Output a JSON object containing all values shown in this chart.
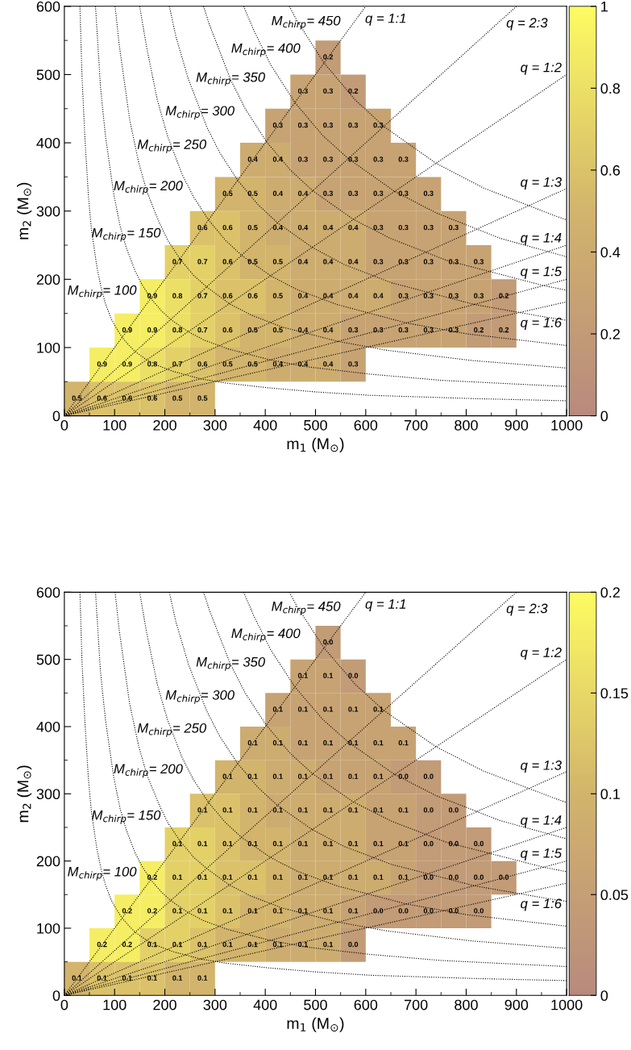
{
  "chart_data": [
    {
      "type": "heatmap",
      "xlabel": "m$_{1}$ (M$_{⊙}$)",
      "ylabel": "m$_{2}$ (M$_{⊙}$)",
      "x": [
        25,
        75,
        125,
        175,
        225,
        275,
        325,
        375,
        425,
        475,
        525,
        575,
        625,
        675,
        725,
        775,
        825,
        875,
        925,
        975
      ],
      "y": [
        525,
        475,
        425,
        375,
        325,
        275,
        225,
        175,
        125,
        75,
        25
      ],
      "cells": [
        [
          null,
          null,
          null,
          null,
          null,
          null,
          null,
          null,
          null,
          null,
          0.2,
          null,
          null,
          null,
          null,
          null,
          null,
          null,
          null,
          null
        ],
        [
          null,
          null,
          null,
          null,
          null,
          null,
          null,
          null,
          null,
          0.3,
          0.3,
          0.2,
          null,
          null,
          null,
          null,
          null,
          null,
          null,
          null
        ],
        [
          null,
          null,
          null,
          null,
          null,
          null,
          null,
          null,
          0.3,
          0.3,
          0.3,
          0.3,
          0.3,
          null,
          null,
          null,
          null,
          null,
          null,
          null
        ],
        [
          null,
          null,
          null,
          null,
          null,
          null,
          null,
          0.4,
          0.4,
          0.3,
          0.3,
          0.3,
          0.3,
          0.3,
          null,
          null,
          null,
          null,
          null,
          null
        ],
        [
          null,
          null,
          null,
          null,
          null,
          null,
          0.5,
          0.5,
          0.4,
          0.4,
          0.3,
          0.3,
          0.3,
          0.3,
          0.3,
          null,
          null,
          null,
          null,
          null
        ],
        [
          null,
          null,
          null,
          null,
          null,
          0.6,
          0.6,
          0.5,
          0.4,
          0.4,
          0.4,
          0.4,
          0.3,
          0.3,
          0.3,
          0.3,
          null,
          null,
          null,
          null
        ],
        [
          null,
          null,
          null,
          null,
          0.7,
          0.7,
          0.6,
          0.5,
          0.5,
          0.4,
          0.4,
          0.4,
          0.3,
          0.3,
          0.3,
          0.3,
          0.3,
          null,
          null,
          null
        ],
        [
          null,
          null,
          null,
          0.9,
          0.8,
          0.7,
          0.6,
          0.6,
          0.5,
          0.4,
          0.4,
          0.4,
          0.4,
          0.3,
          0.3,
          0.3,
          0.3,
          0.2,
          null,
          null
        ],
        [
          null,
          null,
          0.9,
          0.9,
          0.8,
          0.7,
          0.6,
          0.5,
          0.5,
          0.4,
          0.4,
          0.3,
          0.3,
          0.3,
          0.3,
          0.3,
          0.2,
          0.2,
          null,
          null
        ],
        [
          null,
          0.9,
          0.9,
          0.8,
          0.7,
          0.6,
          0.5,
          0.5,
          0.4,
          0.4,
          0.4,
          0.3,
          null,
          null,
          null,
          null,
          null,
          null,
          null,
          null
        ],
        [
          0.5,
          0.6,
          0.6,
          0.6,
          0.5,
          0.5,
          null,
          null,
          null,
          null,
          null,
          null,
          null,
          null,
          null,
          null,
          null,
          null,
          null,
          null
        ]
      ],
      "cell_labels": [
        [
          null,
          null,
          null,
          null,
          null,
          null,
          null,
          null,
          null,
          null,
          "0.2",
          null,
          null,
          null,
          null,
          null,
          null,
          null,
          null,
          null
        ],
        [
          null,
          null,
          null,
          null,
          null,
          null,
          null,
          null,
          null,
          "0.3",
          "0.3",
          "0.2",
          null,
          null,
          null,
          null,
          null,
          null,
          null,
          null
        ],
        [
          null,
          null,
          null,
          null,
          null,
          null,
          null,
          null,
          "0.3",
          "0.3",
          "0.3",
          "0.3",
          "0.3",
          null,
          null,
          null,
          null,
          null,
          null,
          null
        ],
        [
          null,
          null,
          null,
          null,
          null,
          null,
          null,
          "0.4",
          "0.4",
          "0.3",
          "0.3",
          "0.3",
          "0.3",
          "0.3",
          null,
          null,
          null,
          null,
          null,
          null
        ],
        [
          null,
          null,
          null,
          null,
          null,
          null,
          "0.5",
          "0.5",
          "0.4",
          "0.4",
          "0.3",
          "0.3",
          "0.3",
          "0.3",
          "0.3",
          null,
          null,
          null,
          null,
          null
        ],
        [
          null,
          null,
          null,
          null,
          null,
          "0.6",
          "0.6",
          "0.5",
          "0.4",
          "0.4",
          "0.4",
          "0.4",
          "0.3",
          "0.3",
          "0.3",
          "0.3",
          null,
          null,
          null,
          null
        ],
        [
          null,
          null,
          null,
          null,
          "0.7",
          "0.7",
          "0.6",
          "0.5",
          "0.5",
          "0.4",
          "0.4",
          "0.4",
          "0.3",
          "0.3",
          "0.3",
          "0.3",
          "0.3",
          null,
          null,
          null
        ],
        [
          null,
          null,
          null,
          "0.9",
          "0.8",
          "0.7",
          "0.6",
          "0.6",
          "0.5",
          "0.4",
          "0.4",
          "0.4",
          "0.4",
          "0.3",
          "0.3",
          "0.3",
          "0.3",
          "0.2",
          null,
          null
        ],
        [
          null,
          null,
          "0.9",
          "0.9",
          "0.8",
          "0.7",
          "0.6",
          "0.5",
          "0.5",
          "0.4",
          "0.4",
          "0.3",
          "0.3",
          "0.3",
          "0.3",
          "0.3",
          "0.2",
          "0.2",
          null,
          null
        ],
        [
          null,
          "0.9",
          "0.9",
          "0.8",
          "0.7",
          "0.6",
          "0.5",
          "0.5",
          "0.4",
          "0.4",
          "0.4",
          "0.3",
          null,
          null,
          null,
          null,
          null,
          null,
          null,
          null
        ],
        [
          "0.5",
          "0.6",
          "0.6",
          "0.6",
          "0.5",
          "0.5",
          null,
          null,
          null,
          null,
          null,
          null,
          null,
          null,
          null,
          null,
          null,
          null,
          null,
          null
        ]
      ],
      "clim": [
        0,
        1
      ],
      "cticks": [
        0,
        0.2,
        0.4,
        0.6,
        0.8,
        1
      ],
      "xlim": [
        0,
        1000
      ],
      "ylim": [
        0,
        600
      ],
      "xticks": [
        0,
        {
          "value": 50,
          "label": null
        },
        100,
        {
          "value": 150,
          "label": null
        },
        200,
        {
          "value": 250,
          "label": null
        },
        300,
        {
          "value": 350,
          "label": null
        },
        400,
        {
          "value": 450,
          "label": null
        },
        500,
        {
          "value": 550,
          "label": null
        },
        600,
        {
          "value": 650,
          "label": null
        },
        700,
        {
          "value": 750,
          "label": null
        },
        800,
        {
          "value": 850,
          "label": null
        },
        900,
        {
          "value": 950,
          "label": null
        },
        1000
      ],
      "yticks": [
        0,
        {
          "value": 50,
          "label": null
        },
        100,
        {
          "value": 150,
          "label": null
        },
        200,
        {
          "value": 250,
          "label": null
        },
        300,
        {
          "value": 350,
          "label": null
        },
        400,
        {
          "value": 450,
          "label": null
        },
        500,
        {
          "value": 550,
          "label": null
        },
        600
      ],
      "line_style": "dotted",
      "series": [
        {
          "type": "line",
          "color": "#000000",
          "x": [
            31,
            35,
            41,
            48,
            54,
            65,
            74,
            82,
            94,
            103,
            115,
            129,
            141,
            164,
            185,
            217,
            272,
            321,
            406,
            500,
            609,
            825,
            1000
          ],
          "values": [
            600,
            500,
            406,
            321,
            272,
            217,
            185,
            164,
            141,
            129,
            115,
            103,
            94,
            82,
            74,
            65,
            54,
            48,
            41,
            35,
            30,
            25,
            22
          ]
        },
        {
          "type": "line",
          "color": "#000000",
          "x": [
            62,
            72,
            82,
            98,
            111,
            123,
            141,
            154,
            172,
            193,
            212,
            247,
            278,
            326,
            409,
            481,
            609,
            750,
            914,
            1000
          ],
          "values": [
            600,
            481,
            409,
            326,
            278,
            247,
            212,
            193,
            172,
            154,
            141,
            123,
            111,
            98,
            82,
            72,
            61,
            52,
            46,
            43
          ]
        },
        {
          "type": "line",
          "color": "#000000",
          "x": [
            101,
            109,
            130,
            148,
            164,
            189,
            206,
            230,
            257,
            283,
            329,
            371,
            434,
            545,
            642,
            812,
            1000
          ],
          "values": [
            600,
            545,
            434,
            371,
            329,
            283,
            257,
            230,
            206,
            189,
            164,
            148,
            130,
            109,
            96,
            81,
            70
          ]
        },
        {
          "type": "line",
          "color": "#000000",
          "x": [
            150,
            163,
            185,
            205,
            235,
            257,
            287,
            321,
            353,
            411,
            463,
            543,
            681,
            802,
            1000
          ],
          "values": [
            600,
            543,
            463,
            411,
            353,
            321,
            287,
            257,
            235,
            205,
            185,
            163,
            136,
            120,
            103
          ]
        },
        {
          "type": "line",
          "color": "#000000",
          "x": [
            209,
            222,
            247,
            283,
            309,
            345,
            386,
            424,
            493,
            556,
            651,
            817,
            963,
            1000
          ],
          "values": [
            600,
            556,
            493,
            424,
            386,
            345,
            309,
            283,
            247,
            222,
            195,
            163,
            144,
            140
          ]
        },
        {
          "type": "line",
          "color": "#000000",
          "x": [
            277,
            288,
            330,
            360,
            402,
            450,
            494,
            575,
            649,
            760,
            953,
            1000
          ],
          "values": [
            600,
            575,
            494,
            450,
            402,
            360,
            330,
            288,
            260,
            228,
            191,
            184
          ]
        },
        {
          "type": "line",
          "color": "#000000",
          "x": [
            357,
            377,
            411,
            459,
            514,
            565,
            657,
            741,
            868,
            1000
          ],
          "values": [
            600,
            565,
            514,
            459,
            411,
            377,
            329,
            297,
            260,
            233
          ]
        },
        {
          "type": "line",
          "color": "#000000",
          "x": [
            448,
            463,
            517,
            579,
            636,
            740,
            834,
            977,
            1000
          ],
          "values": [
            600,
            579,
            517,
            463,
            424,
            370,
            334,
            293,
            287
          ]
        },
        {
          "type": "line",
          "color": "#000000",
          "x": [
            0,
            600
          ],
          "values": [
            0,
            600
          ]
        },
        {
          "type": "line",
          "color": "#000000",
          "x": [
            0,
            900
          ],
          "values": [
            0,
            600
          ]
        },
        {
          "type": "line",
          "color": "#000000",
          "x": [
            0,
            1000
          ],
          "values": [
            0,
            500
          ]
        },
        {
          "type": "line",
          "color": "#000000",
          "x": [
            0,
            1000
          ],
          "values": [
            0,
            333
          ]
        },
        {
          "type": "line",
          "color": "#000000",
          "x": [
            0,
            1000
          ],
          "values": [
            0,
            250
          ]
        },
        {
          "type": "line",
          "color": "#000000",
          "x": [
            0,
            1000
          ],
          "values": [
            0,
            200
          ]
        },
        {
          "type": "line",
          "color": "#000000",
          "x": [
            0,
            1000
          ],
          "values": [
            0,
            167
          ]
        }
      ],
      "annotations": [
        "M$_{chirp}$= 450",
        "M$_{chirp}$= 400",
        "M$_{chirp}$= 350",
        "M$_{chirp}$= 300",
        "M$_{chirp}$= 250",
        "M$_{chirp}$= 200",
        "M$_{chirp}$= 150",
        "M$_{chirp}$= 100",
        "q = 1:1",
        "q = 2:3",
        "q = 1:2",
        "q = 1:3",
        "q = 1:4",
        "q = 1:5",
        "q = 1:6"
      ]
    },
    {
      "type": "heatmap",
      "xlabel": "m$_{1}$ (M$_{⊙}$)",
      "ylabel": "m$_{2}$ (M$_{⊙}$)",
      "x": [
        25,
        75,
        125,
        175,
        225,
        275,
        325,
        375,
        425,
        475,
        525,
        575,
        625,
        675,
        725,
        775,
        825,
        875,
        925,
        975
      ],
      "y": [
        525,
        475,
        425,
        375,
        325,
        275,
        225,
        175,
        125,
        75,
        25
      ],
      "cells": [
        [
          null,
          null,
          null,
          null,
          null,
          null,
          null,
          null,
          null,
          null,
          0.04,
          null,
          null,
          null,
          null,
          null,
          null,
          null,
          null,
          null
        ],
        [
          null,
          null,
          null,
          null,
          null,
          null,
          null,
          null,
          null,
          0.06,
          0.06,
          0.04,
          null,
          null,
          null,
          null,
          null,
          null,
          null,
          null
        ],
        [
          null,
          null,
          null,
          null,
          null,
          null,
          null,
          null,
          0.06,
          0.06,
          0.06,
          0.06,
          0.06,
          null,
          null,
          null,
          null,
          null,
          null,
          null
        ],
        [
          null,
          null,
          null,
          null,
          null,
          null,
          null,
          0.08,
          0.08,
          0.06,
          0.06,
          0.06,
          0.06,
          0.06,
          null,
          null,
          null,
          null,
          null,
          null
        ],
        [
          null,
          null,
          null,
          null,
          null,
          null,
          0.1,
          0.1,
          0.08,
          0.08,
          0.06,
          0.06,
          0.06,
          0.04,
          0.04,
          null,
          null,
          null,
          null,
          null
        ],
        [
          null,
          null,
          null,
          null,
          null,
          0.12,
          0.12,
          0.1,
          0.08,
          0.08,
          0.08,
          0.08,
          0.06,
          0.06,
          0.04,
          0.04,
          null,
          null,
          null,
          null
        ],
        [
          null,
          null,
          null,
          null,
          0.14,
          0.14,
          0.12,
          0.1,
          0.1,
          0.08,
          0.08,
          0.08,
          0.06,
          0.06,
          0.04,
          0.04,
          0.04,
          null,
          null,
          null
        ],
        [
          null,
          null,
          null,
          0.18,
          0.14,
          0.14,
          0.12,
          0.12,
          0.1,
          0.08,
          0.08,
          0.08,
          0.08,
          0.06,
          0.04,
          0.04,
          0.04,
          0.04,
          null,
          null
        ],
        [
          null,
          null,
          0.18,
          0.18,
          0.14,
          0.14,
          0.12,
          0.1,
          0.1,
          0.08,
          0.08,
          0.06,
          0.04,
          0.04,
          0.04,
          0.04,
          0.04,
          null,
          null,
          null
        ],
        [
          null,
          0.18,
          0.18,
          0.14,
          0.14,
          0.12,
          0.1,
          0.1,
          0.08,
          0.08,
          0.08,
          0.04,
          null,
          null,
          null,
          null,
          null,
          null,
          null,
          null
        ],
        [
          0.1,
          0.12,
          0.12,
          0.12,
          0.1,
          0.1,
          null,
          null,
          null,
          null,
          null,
          null,
          null,
          null,
          null,
          null,
          null,
          null,
          null,
          null
        ]
      ],
      "cell_labels": [
        [
          null,
          null,
          null,
          null,
          null,
          null,
          null,
          null,
          null,
          null,
          "0.0",
          null,
          null,
          null,
          null,
          null,
          null,
          null,
          null,
          null
        ],
        [
          null,
          null,
          null,
          null,
          null,
          null,
          null,
          null,
          null,
          "0.1",
          "0.1",
          "0.0",
          null,
          null,
          null,
          null,
          null,
          null,
          null,
          null
        ],
        [
          null,
          null,
          null,
          null,
          null,
          null,
          null,
          null,
          "0.1",
          "0.1",
          "0.1",
          "0.1",
          "0.1",
          null,
          null,
          null,
          null,
          null,
          null,
          null
        ],
        [
          null,
          null,
          null,
          null,
          null,
          null,
          null,
          "0.1",
          "0.1",
          "0.1",
          "0.1",
          "0.1",
          "0.1",
          "0.1",
          null,
          null,
          null,
          null,
          null,
          null
        ],
        [
          null,
          null,
          null,
          null,
          null,
          null,
          "0.1",
          "0.1",
          "0.1",
          "0.1",
          "0.1",
          "0.1",
          "0.1",
          "0.0",
          "0.0",
          null,
          null,
          null,
          null,
          null
        ],
        [
          null,
          null,
          null,
          null,
          null,
          "0.1",
          "0.1",
          "0.1",
          "0.1",
          "0.1",
          "0.1",
          "0.1",
          "0.1",
          "0.1",
          "0.0",
          "0.0",
          null,
          null,
          null,
          null
        ],
        [
          null,
          null,
          null,
          null,
          "0.1",
          "0.1",
          "0.1",
          "0.1",
          "0.1",
          "0.1",
          "0.1",
          "0.1",
          "0.1",
          "0.1",
          "0.0",
          "0.0",
          "0.0",
          null,
          null,
          null
        ],
        [
          null,
          null,
          null,
          "0.2",
          "0.1",
          "0.1",
          "0.1",
          "0.1",
          "0.1",
          "0.1",
          "0.1",
          "0.1",
          "0.1",
          "0.1",
          "0.0",
          "0.0",
          "0.0",
          "0.0",
          null,
          null
        ],
        [
          null,
          null,
          "0.2",
          "0.2",
          "0.1",
          "0.1",
          "0.1",
          "0.1",
          "0.1",
          "0.1",
          "0.1",
          "0.1",
          "0.0",
          "0.0",
          "0.0",
          "0.0",
          "0.0",
          null,
          null,
          null
        ],
        [
          null,
          "0.2",
          "0.2",
          "0.1",
          "0.1",
          "0.1",
          "0.1",
          "0.1",
          "0.1",
          "0.1",
          "0.1",
          "0.0",
          null,
          null,
          null,
          null,
          null,
          null,
          null,
          null
        ],
        [
          "0.1",
          "0.1",
          "0.1",
          "0.1",
          "0.1",
          "0.1",
          null,
          null,
          null,
          null,
          null,
          null,
          null,
          null,
          null,
          null,
          null,
          null,
          null,
          null
        ]
      ],
      "clim": [
        0,
        0.2
      ],
      "cticks": [
        0,
        0.05,
        0.1,
        0.15,
        0.2
      ],
      "xlim": [
        0,
        1000
      ],
      "ylim": [
        0,
        600
      ],
      "xticks": [
        0,
        {
          "value": 50,
          "label": null
        },
        100,
        {
          "value": 150,
          "label": null
        },
        200,
        {
          "value": 250,
          "label": null
        },
        300,
        {
          "value": 350,
          "label": null
        },
        400,
        {
          "value": 450,
          "label": null
        },
        500,
        {
          "value": 550,
          "label": null
        },
        600,
        {
          "value": 650,
          "label": null
        },
        700,
        {
          "value": 750,
          "label": null
        },
        800,
        {
          "value": 850,
          "label": null
        },
        900,
        {
          "value": 950,
          "label": null
        },
        1000
      ],
      "yticks": [
        0,
        {
          "value": 50,
          "label": null
        },
        100,
        {
          "value": 150,
          "label": null
        },
        200,
        {
          "value": 250,
          "label": null
        },
        300,
        {
          "value": 350,
          "label": null
        },
        400,
        {
          "value": 450,
          "label": null
        },
        500,
        {
          "value": 550,
          "label": null
        },
        600
      ],
      "line_style": "dotted",
      "series": [
        {
          "type": "line",
          "color": "#000000",
          "x": [
            31,
            35,
            41,
            48,
            54,
            65,
            74,
            82,
            94,
            103,
            115,
            129,
            141,
            164,
            185,
            217,
            272,
            321,
            406,
            500,
            609,
            825,
            1000
          ],
          "values": [
            600,
            500,
            406,
            321,
            272,
            217,
            185,
            164,
            141,
            129,
            115,
            103,
            94,
            82,
            74,
            65,
            54,
            48,
            41,
            35,
            30,
            25,
            22
          ]
        },
        {
          "type": "line",
          "color": "#000000",
          "x": [
            62,
            72,
            82,
            98,
            111,
            123,
            141,
            154,
            172,
            193,
            212,
            247,
            278,
            326,
            409,
            481,
            609,
            750,
            914,
            1000
          ],
          "values": [
            600,
            481,
            409,
            326,
            278,
            247,
            212,
            193,
            172,
            154,
            141,
            123,
            111,
            98,
            82,
            72,
            61,
            52,
            46,
            43
          ]
        },
        {
          "type": "line",
          "color": "#000000",
          "x": [
            101,
            109,
            130,
            148,
            164,
            189,
            206,
            230,
            257,
            283,
            329,
            371,
            434,
            545,
            642,
            812,
            1000
          ],
          "values": [
            600,
            545,
            434,
            371,
            329,
            283,
            257,
            230,
            206,
            189,
            164,
            148,
            130,
            109,
            96,
            81,
            70
          ]
        },
        {
          "type": "line",
          "color": "#000000",
          "x": [
            150,
            163,
            185,
            205,
            235,
            257,
            287,
            321,
            353,
            411,
            463,
            543,
            681,
            802,
            1000
          ],
          "values": [
            600,
            543,
            463,
            411,
            353,
            321,
            287,
            257,
            235,
            205,
            185,
            163,
            136,
            120,
            103
          ]
        },
        {
          "type": "line",
          "color": "#000000",
          "x": [
            209,
            222,
            247,
            283,
            309,
            345,
            386,
            424,
            493,
            556,
            651,
            817,
            963,
            1000
          ],
          "values": [
            600,
            556,
            493,
            424,
            386,
            345,
            309,
            283,
            247,
            222,
            195,
            163,
            144,
            140
          ]
        },
        {
          "type": "line",
          "color": "#000000",
          "x": [
            277,
            288,
            330,
            360,
            402,
            450,
            494,
            575,
            649,
            760,
            953,
            1000
          ],
          "values": [
            600,
            575,
            494,
            450,
            402,
            360,
            330,
            288,
            260,
            228,
            191,
            184
          ]
        },
        {
          "type": "line",
          "color": "#000000",
          "x": [
            357,
            377,
            411,
            459,
            514,
            565,
            657,
            741,
            868,
            1000
          ],
          "values": [
            600,
            565,
            514,
            459,
            411,
            377,
            329,
            297,
            260,
            233
          ]
        },
        {
          "type": "line",
          "color": "#000000",
          "x": [
            448,
            463,
            517,
            579,
            636,
            740,
            834,
            977,
            1000
          ],
          "values": [
            600,
            579,
            517,
            463,
            424,
            370,
            334,
            293,
            287
          ]
        },
        {
          "type": "line",
          "color": "#000000",
          "x": [
            0,
            600
          ],
          "values": [
            0,
            600
          ]
        },
        {
          "type": "line",
          "color": "#000000",
          "x": [
            0,
            900
          ],
          "values": [
            0,
            600
          ]
        },
        {
          "type": "line",
          "color": "#000000",
          "x": [
            0,
            1000
          ],
          "values": [
            0,
            500
          ]
        },
        {
          "type": "line",
          "color": "#000000",
          "x": [
            0,
            1000
          ],
          "values": [
            0,
            333
          ]
        },
        {
          "type": "line",
          "color": "#000000",
          "x": [
            0,
            1000
          ],
          "values": [
            0,
            250
          ]
        },
        {
          "type": "line",
          "color": "#000000",
          "x": [
            0,
            1000
          ],
          "values": [
            0,
            200
          ]
        },
        {
          "type": "line",
          "color": "#000000",
          "x": [
            0,
            1000
          ],
          "values": [
            0,
            167
          ]
        }
      ],
      "annotations": [
        "M$_{chirp}$= 450",
        "M$_{chirp}$= 400",
        "M$_{chirp}$= 350",
        "M$_{chirp}$= 300",
        "M$_{chirp}$= 250",
        "M$_{chirp}$= 200",
        "M$_{chirp}$= 150",
        "M$_{chirp}$= 100",
        "q = 1:1",
        "q = 2:3",
        "q = 1:2",
        "q = 1:3",
        "q = 1:4",
        "q = 1:5",
        "q = 1:6"
      ]
    }
  ]
}
